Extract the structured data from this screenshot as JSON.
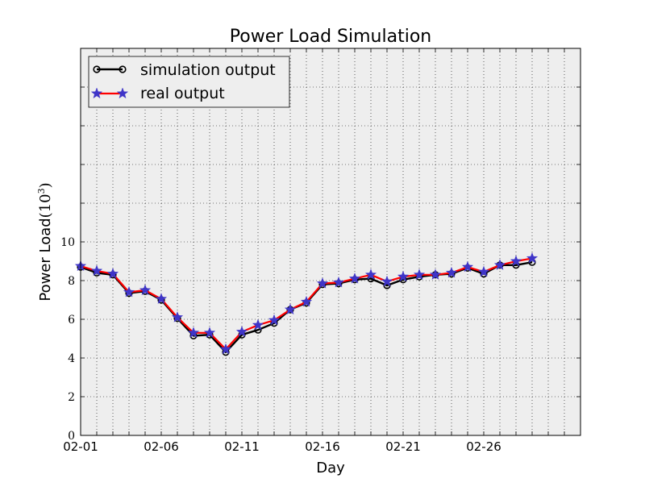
{
  "chart_data": {
    "type": "line",
    "title": "Power Load Simulation",
    "xlabel": "Day",
    "ylabel": "Power Load",
    "ylabel_exponent_base": "10",
    "ylabel_exponent": "3",
    "x": [
      "02-01",
      "02-02",
      "02-03",
      "02-04",
      "02-05",
      "02-06",
      "02-07",
      "02-08",
      "02-09",
      "02-10",
      "02-11",
      "02-12",
      "02-13",
      "02-14",
      "02-15",
      "02-16",
      "02-17",
      "02-18",
      "02-19",
      "02-20",
      "02-21",
      "02-22",
      "02-23",
      "02-24",
      "02-25",
      "02-26",
      "02-27",
      "02-28",
      "02-29"
    ],
    "xlim": [
      "02-01",
      "03-03"
    ],
    "x_tick_labels": [
      "02-01",
      "02-06",
      "02-11",
      "02-16",
      "02-21",
      "02-26"
    ],
    "ylim": [
      0,
      20
    ],
    "y_tick_labels": [
      "0",
      "2",
      "4",
      "6",
      "8",
      "10"
    ],
    "grid": true,
    "legend_placement": "top-left",
    "background_color": "#eeeeee",
    "series": [
      {
        "name": "simulation output",
        "color": "#000000",
        "marker": "circle",
        "values": [
          8.7,
          8.4,
          8.3,
          7.35,
          7.45,
          7.0,
          6.05,
          5.15,
          5.2,
          4.3,
          5.2,
          5.45,
          5.8,
          6.5,
          6.85,
          7.8,
          7.85,
          8.05,
          8.1,
          7.75,
          8.05,
          8.2,
          8.3,
          8.35,
          8.65,
          8.35,
          8.8,
          8.8,
          8.95
        ]
      },
      {
        "name": "real output",
        "color": "#ff0000",
        "marker_color": "#3f35c8",
        "marker": "star",
        "values": [
          8.75,
          8.5,
          8.35,
          7.4,
          7.5,
          7.05,
          6.1,
          5.3,
          5.3,
          4.45,
          5.35,
          5.7,
          5.95,
          6.5,
          6.9,
          7.85,
          7.9,
          8.1,
          8.3,
          7.95,
          8.2,
          8.3,
          8.3,
          8.4,
          8.7,
          8.45,
          8.8,
          9.0,
          9.15
        ]
      }
    ]
  }
}
